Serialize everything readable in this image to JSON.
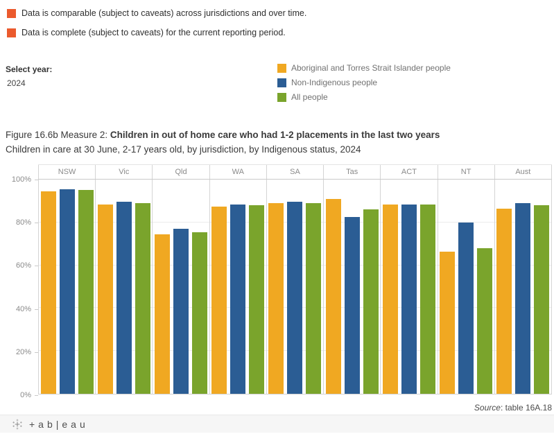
{
  "caveats": {
    "items": [
      {
        "key": "comparable",
        "label": "Data is comparable (subject to caveats) across jurisdictions and over time.",
        "color": "#EB5A2D"
      },
      {
        "key": "complete",
        "label": "Data is complete (subject to caveats) for the current reporting period.",
        "color": "#EB5A2D"
      }
    ]
  },
  "year_filter": {
    "label": "Select year:",
    "value": "2024"
  },
  "legend": {
    "items": [
      {
        "key": "indigenous",
        "label": "Aboriginal and Torres Strait Islander people",
        "color": "#F0A822"
      },
      {
        "key": "non-indigenous",
        "label": "Non-Indigenous people",
        "color": "#2B5D94"
      },
      {
        "key": "all",
        "label": "All people",
        "color": "#7AA42C"
      }
    ]
  },
  "title": {
    "prefix": "Figure 16.6b Measure 2: ",
    "bold": "Children in out of home care who had 1-2 placements in the last two years",
    "subtitle": "Children in care at 30 June, 2-17 years old, by jurisdiction, by Indigenous status, 2024"
  },
  "chart_data": {
    "type": "bar",
    "title": "Figure 16.6b Measure 2: Children in out of home care who had 1-2 placements in the last two years",
    "subtitle": "Children in care at 30 June, 2-17 years old, by jurisdiction, by Indigenous status, 2024",
    "categories": [
      "NSW",
      "Vic",
      "Qld",
      "WA",
      "SA",
      "Tas",
      "ACT",
      "NT",
      "Aust"
    ],
    "series": [
      {
        "key": "indigenous",
        "name": "Aboriginal and Torres Strait Islander people",
        "color": "#F0A822",
        "values": [
          94.5,
          88.5,
          74.5,
          87.5,
          89,
          91,
          88.5,
          66.5,
          86.5
        ]
      },
      {
        "key": "non-indigenous",
        "name": "Non-Indigenous people",
        "color": "#2B5D94",
        "values": [
          95.5,
          89.5,
          77,
          88.5,
          89.5,
          82.5,
          88.5,
          80,
          89
        ]
      },
      {
        "key": "all",
        "name": "All people",
        "color": "#7AA42C",
        "values": [
          95,
          89,
          75.5,
          88,
          89,
          86,
          88.5,
          68,
          88
        ]
      }
    ],
    "xlabel": "",
    "ylabel": "",
    "ylim": [
      0,
      100
    ],
    "unit": "%",
    "grid": true,
    "legend_position": "top-right",
    "y_axis": {
      "ticks": [
        {
          "label": "100%",
          "value": 100
        },
        {
          "label": "80%",
          "value": 80
        },
        {
          "label": "60%",
          "value": 60
        },
        {
          "label": "40%",
          "value": 40
        },
        {
          "label": "20%",
          "value": 20
        },
        {
          "label": "0%",
          "value": 0
        }
      ],
      "gridline_values": [
        20,
        40,
        60,
        80
      ]
    }
  },
  "source": {
    "italic": "Source",
    "rest": ": table 16A.18"
  },
  "footer": {
    "brand": "+ab|eau"
  }
}
